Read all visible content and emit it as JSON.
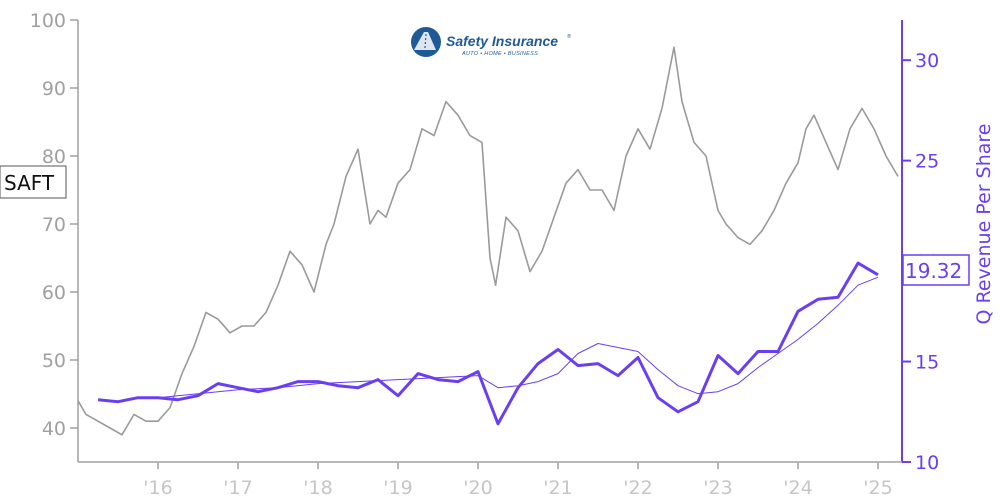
{
  "logo": {
    "name": "Safety Insurance",
    "registered": "®",
    "tagline": "AUTO • HOME • BUSINESS",
    "color": "#1f5a97"
  },
  "ticker": "SAFT",
  "last_value_label": "19.32",
  "colors": {
    "price": "#9a9a9a",
    "revenue": "#6a3ff0",
    "trend": "#6a3ff0"
  },
  "chart_data": {
    "type": "line",
    "left_axis": {
      "ylim": [
        35,
        100
      ],
      "ticks": [
        40,
        50,
        60,
        70,
        80,
        90,
        100
      ],
      "tick_labels": [
        "40",
        "50",
        "60",
        "70",
        "80",
        "90",
        "100"
      ]
    },
    "right_axis": {
      "ylim": [
        10,
        32
      ],
      "ticks": [
        10,
        15,
        20,
        25,
        30
      ],
      "tick_labels": [
        "10",
        "15",
        "20",
        "25",
        "30"
      ],
      "label": "Q Revenue Per Share"
    },
    "x_axis": {
      "xlim": [
        2015.0,
        2025.3
      ],
      "ticks": [
        2016,
        2017,
        2018,
        2019,
        2020,
        2021,
        2022,
        2023,
        2024,
        2025
      ],
      "tick_labels": [
        "'16",
        "'17",
        "'18",
        "'19",
        "'20",
        "'21",
        "'22",
        "'23",
        "'24",
        "'25"
      ]
    },
    "series": [
      {
        "name": "SAFT",
        "axis": "left",
        "x": [
          2015.0,
          2015.1,
          2015.25,
          2015.4,
          2015.55,
          2015.7,
          2015.85,
          2016.0,
          2016.15,
          2016.3,
          2016.45,
          2016.6,
          2016.75,
          2016.9,
          2017.05,
          2017.2,
          2017.35,
          2017.5,
          2017.65,
          2017.8,
          2017.95,
          2018.1,
          2018.2,
          2018.35,
          2018.5,
          2018.65,
          2018.75,
          2018.85,
          2019.0,
          2019.15,
          2019.3,
          2019.45,
          2019.6,
          2019.75,
          2019.9,
          2020.05,
          2020.15,
          2020.22,
          2020.35,
          2020.5,
          2020.65,
          2020.8,
          2020.95,
          2021.1,
          2021.25,
          2021.4,
          2021.55,
          2021.7,
          2021.85,
          2022.0,
          2022.15,
          2022.3,
          2022.45,
          2022.55,
          2022.7,
          2022.85,
          2023.0,
          2023.1,
          2023.25,
          2023.4,
          2023.55,
          2023.7,
          2023.85,
          2024.0,
          2024.1,
          2024.2,
          2024.35,
          2024.5,
          2024.65,
          2024.8,
          2024.95,
          2025.1,
          2025.25
        ],
        "y": [
          44,
          42,
          41,
          40,
          39,
          42,
          41,
          41,
          43,
          48,
          52,
          57,
          56,
          54,
          55,
          55,
          57,
          61,
          66,
          64,
          60,
          67,
          70,
          77,
          81,
          70,
          72,
          71,
          76,
          78,
          84,
          83,
          88,
          86,
          83,
          82,
          65,
          61,
          71,
          69,
          63,
          66,
          71,
          76,
          78,
          75,
          75,
          72,
          80,
          84,
          81,
          87,
          96,
          88,
          82,
          80,
          72,
          70,
          68,
          67,
          69,
          72,
          76,
          79,
          84,
          86,
          82,
          78,
          84,
          87,
          84,
          80,
          77
        ]
      },
      {
        "name": "Q Revenue Per Share",
        "axis": "right",
        "x": [
          2015.25,
          2015.5,
          2015.75,
          2016.0,
          2016.25,
          2016.5,
          2016.75,
          2017.0,
          2017.25,
          2017.5,
          2017.75,
          2018.0,
          2018.25,
          2018.5,
          2018.75,
          2019.0,
          2019.25,
          2019.5,
          2019.75,
          2020.0,
          2020.25,
          2020.5,
          2020.75,
          2021.0,
          2021.25,
          2021.5,
          2021.75,
          2022.0,
          2022.25,
          2022.5,
          2022.75,
          2023.0,
          2023.25,
          2023.5,
          2023.75,
          2024.0,
          2024.25,
          2024.5,
          2024.75,
          2025.0
        ],
        "y": [
          13.1,
          13.0,
          13.2,
          13.2,
          13.1,
          13.3,
          13.9,
          13.7,
          13.5,
          13.7,
          14.0,
          14.0,
          13.8,
          13.7,
          14.1,
          13.3,
          14.4,
          14.1,
          14.0,
          14.5,
          11.9,
          13.7,
          14.9,
          15.6,
          14.8,
          14.9,
          14.3,
          15.2,
          13.2,
          12.5,
          13.0,
          15.3,
          14.4,
          15.5,
          15.5,
          17.5,
          18.1,
          18.2,
          19.9,
          19.32
        ]
      },
      {
        "name": "Q Revenue Per Share trend",
        "axis": "right",
        "x": [
          2016.0,
          2016.5,
          2017.0,
          2017.5,
          2018.0,
          2018.5,
          2019.0,
          2019.5,
          2020.0,
          2020.25,
          2020.5,
          2020.75,
          2021.0,
          2021.25,
          2021.5,
          2021.75,
          2022.0,
          2022.25,
          2022.5,
          2022.75,
          2023.0,
          2023.25,
          2023.5,
          2023.75,
          2024.0,
          2024.25,
          2024.5,
          2024.75,
          2025.0
        ],
        "y": [
          13.2,
          13.4,
          13.6,
          13.7,
          13.9,
          14.0,
          14.1,
          14.2,
          14.3,
          13.7,
          13.8,
          14.0,
          14.4,
          15.4,
          15.9,
          15.7,
          15.5,
          14.6,
          13.8,
          13.4,
          13.5,
          13.9,
          14.7,
          15.4,
          16.1,
          16.9,
          17.8,
          18.8,
          19.2
        ]
      }
    ]
  }
}
